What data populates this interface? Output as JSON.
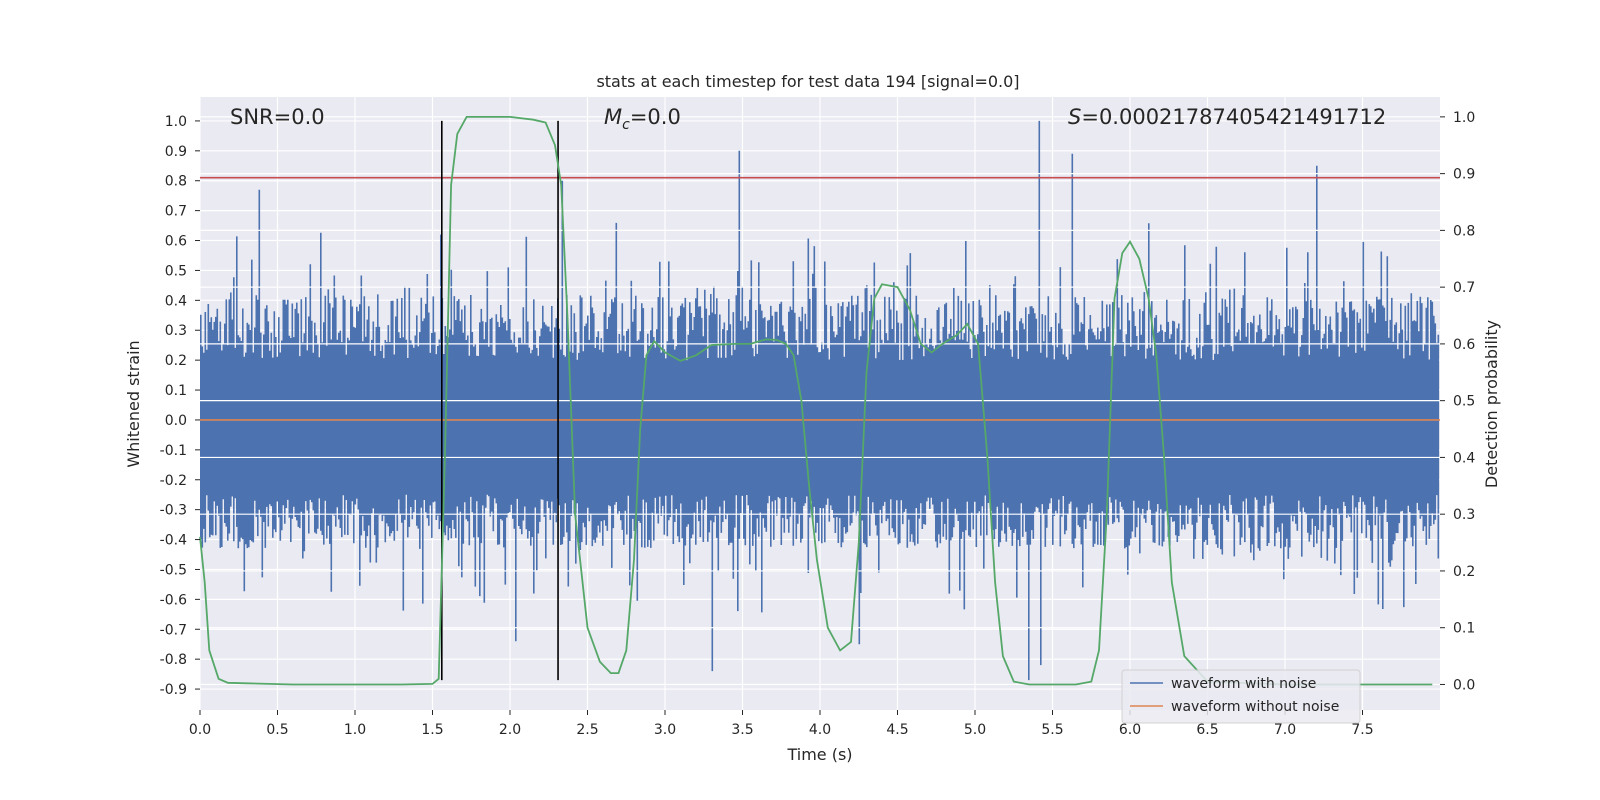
{
  "chart_data": {
    "type": "line",
    "title": "stats at each timestep for test data 194 [signal=0.0]",
    "xlabel": "Time (s)",
    "ylabel_left": "Whitened strain",
    "ylabel_right": "Detection probability",
    "xlim": [
      0.0,
      8.0
    ],
    "ylim_left": [
      -0.97,
      1.08
    ],
    "ylim_right": [
      -0.045,
      1.035
    ],
    "x_ticks": [
      "0.0",
      "0.5",
      "1.0",
      "1.5",
      "2.0",
      "2.5",
      "3.0",
      "3.5",
      "4.0",
      "4.5",
      "5.0",
      "5.5",
      "6.0",
      "6.5",
      "7.0",
      "7.5"
    ],
    "y_left_ticks": [
      "1.0",
      "0.9",
      "0.8",
      "0.7",
      "0.6",
      "0.5",
      "0.4",
      "0.3",
      "0.2",
      "0.1",
      "0.0",
      "-0.1",
      "-0.2",
      "-0.3",
      "-0.4",
      "-0.5",
      "-0.6",
      "-0.7",
      "-0.8",
      "-0.9"
    ],
    "y_right_ticks": [
      "1.0",
      "0.9",
      "0.8",
      "0.7",
      "0.6",
      "0.5",
      "0.4",
      "0.3",
      "0.2",
      "0.1",
      "0.0"
    ],
    "annotations": {
      "snr": "SNR=0.0",
      "mc_symbol": "M",
      "mc_sub": "c",
      "mc_value": "=0.0",
      "s_symbol": "S",
      "s_value": "=0.00021787405421491712"
    },
    "threshold_left": 0.81,
    "vertical_lines": [
      1.56,
      2.31
    ],
    "noisy_waveform": {
      "name": "waveform with noise",
      "color": "#4c72b0",
      "typical_peak": 0.4,
      "max_peak": 1.0,
      "min_trough": -0.87,
      "tall_spikes": [
        {
          "t": 0.38,
          "v": 0.77
        },
        {
          "t": 1.55,
          "v": 0.62
        },
        {
          "t": 2.33,
          "v": 0.8
        },
        {
          "t": 3.47,
          "v": 0.9
        },
        {
          "t": 5.41,
          "v": 1.0
        },
        {
          "t": 5.62,
          "v": 0.89
        },
        {
          "t": 7.2,
          "v": 0.85
        },
        {
          "t": 3.3,
          "v": -0.84
        },
        {
          "t": 5.34,
          "v": -0.87
        },
        {
          "t": 5.42,
          "v": -0.82
        },
        {
          "t": 4.25,
          "v": -0.75
        },
        {
          "t": 2.03,
          "v": -0.74
        }
      ]
    },
    "clean_waveform": {
      "name": "waveform without noise",
      "color": "#dd8452",
      "value": 0.0
    },
    "detection_probability": {
      "color": "#55a868",
      "x": [
        0.0,
        0.03,
        0.06,
        0.12,
        0.18,
        0.3,
        0.6,
        1.0,
        1.3,
        1.5,
        1.54,
        1.58,
        1.62,
        1.66,
        1.72,
        1.8,
        2.0,
        2.15,
        2.23,
        2.29,
        2.33,
        2.37,
        2.42,
        2.5,
        2.58,
        2.65,
        2.7,
        2.75,
        2.8,
        2.84,
        2.88,
        2.93,
        3.0,
        3.1,
        3.2,
        3.3,
        3.45,
        3.55,
        3.65,
        3.72,
        3.78,
        3.83,
        3.88,
        3.93,
        3.98,
        4.05,
        4.13,
        4.2,
        4.25,
        4.3,
        4.35,
        4.4,
        4.5,
        4.58,
        4.65,
        4.72,
        4.79,
        4.88,
        4.95,
        5.02,
        5.08,
        5.13,
        5.18,
        5.25,
        5.35,
        5.5,
        5.65,
        5.75,
        5.8,
        5.85,
        5.9,
        5.95,
        6.0,
        6.06,
        6.12,
        6.17,
        6.22,
        6.27,
        6.35,
        6.5,
        7.0,
        7.5,
        7.95
      ],
      "y": [
        0.26,
        0.18,
        0.06,
        0.01,
        0.003,
        0.002,
        0.0,
        0.0,
        0.0,
        0.001,
        0.01,
        0.4,
        0.88,
        0.97,
        1.0,
        1.0,
        1.0,
        0.995,
        0.99,
        0.95,
        0.88,
        0.65,
        0.3,
        0.1,
        0.04,
        0.02,
        0.02,
        0.06,
        0.22,
        0.45,
        0.58,
        0.605,
        0.585,
        0.57,
        0.58,
        0.598,
        0.6,
        0.6,
        0.608,
        0.607,
        0.6,
        0.58,
        0.5,
        0.35,
        0.22,
        0.1,
        0.06,
        0.075,
        0.25,
        0.55,
        0.68,
        0.705,
        0.7,
        0.66,
        0.6,
        0.585,
        0.6,
        0.615,
        0.635,
        0.6,
        0.4,
        0.18,
        0.05,
        0.005,
        0.0,
        0.0,
        0.0,
        0.005,
        0.06,
        0.3,
        0.68,
        0.76,
        0.78,
        0.75,
        0.68,
        0.58,
        0.4,
        0.18,
        0.05,
        0.005,
        0.0,
        0.0,
        0.0
      ]
    },
    "legend": {
      "placement": "lower-right",
      "entries": [
        "waveform with noise",
        "waveform without noise"
      ]
    },
    "grid": true
  }
}
